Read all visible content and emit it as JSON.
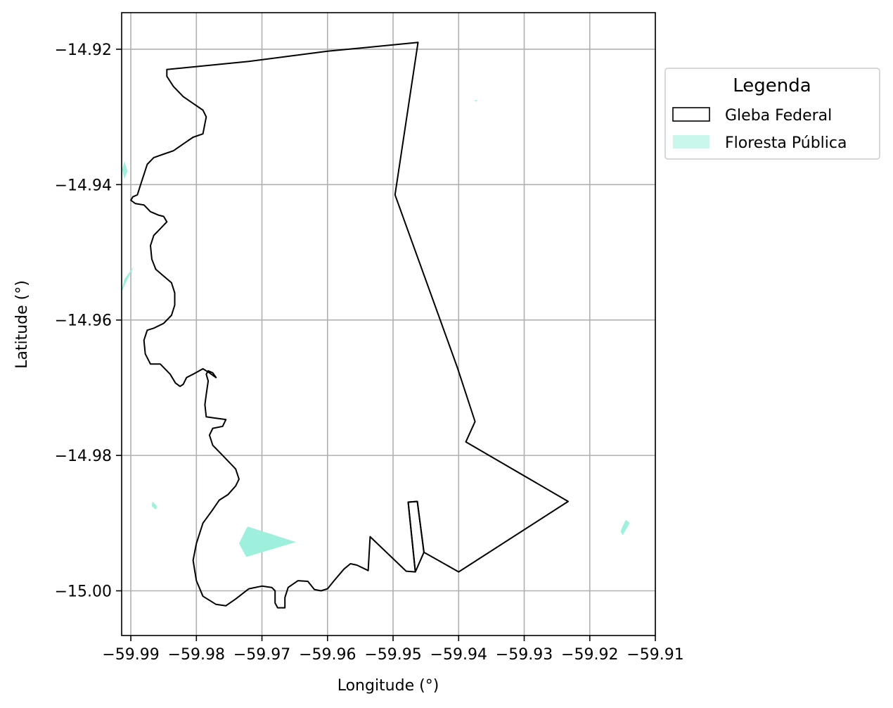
{
  "chart_data": {
    "type": "map",
    "xlabel": "Longitude (°)",
    "ylabel": "Latitude (°)",
    "xlim": [
      -59.9914,
      -59.91
    ],
    "ylim": [
      -15.0066,
      -14.9146
    ],
    "grid": true,
    "x_ticks": [
      {
        "value": -59.99,
        "label": "−59.99"
      },
      {
        "value": -59.98,
        "label": "−59.98"
      },
      {
        "value": -59.97,
        "label": "−59.97"
      },
      {
        "value": -59.96,
        "label": "−59.96"
      },
      {
        "value": -59.95,
        "label": "−59.95"
      },
      {
        "value": -59.94,
        "label": "−59.94"
      },
      {
        "value": -59.93,
        "label": "−59.93"
      },
      {
        "value": -59.92,
        "label": "−59.92"
      },
      {
        "value": -59.91,
        "label": "−59.91"
      }
    ],
    "y_ticks": [
      {
        "value": -14.92,
        "label": "−14.92"
      },
      {
        "value": -14.94,
        "label": "−14.94"
      },
      {
        "value": -14.96,
        "label": "−14.96"
      },
      {
        "value": -14.98,
        "label": "−14.98"
      },
      {
        "value": -15.0,
        "label": "−15.00"
      }
    ],
    "legend": {
      "title": "Legenda",
      "placement": "outside-right-top",
      "entries": [
        {
          "label": "Gleba Federal",
          "style": "outline",
          "color": "#000000"
        },
        {
          "label": "Floresta Pública",
          "style": "fill",
          "color": "#9ef0dc"
        }
      ]
    },
    "layers": [
      {
        "name": "Gleba Federal",
        "style": "outline",
        "edge_color": "#000000",
        "polygons": [
          [
            [
              -59.9845,
              -14.923
            ],
            [
              -59.972,
              -14.9218
            ],
            [
              -59.96,
              -14.9203
            ],
            [
              -59.9462,
              -14.919
            ],
            [
              -59.9497,
              -14.9415
            ],
            [
              -59.9402,
              -14.967
            ],
            [
              -59.9375,
              -14.975
            ],
            [
              -59.9389,
              -14.978
            ],
            [
              -59.9233,
              -14.9868
            ],
            [
              -59.94,
              -14.9972
            ],
            [
              -59.9453,
              -14.9943
            ],
            [
              -59.9463,
              -14.9868
            ],
            [
              -59.9477,
              -14.9869
            ],
            [
              -59.9466,
              -14.9972
            ],
            [
              -59.948,
              -14.9971
            ],
            [
              -59.9535,
              -14.992
            ],
            [
              -59.9538,
              -14.997
            ],
            [
              -59.9555,
              -14.9962
            ],
            [
              -59.9565,
              -14.996
            ],
            [
              -59.9575,
              -14.9968
            ],
            [
              -59.959,
              -14.9985
            ],
            [
              -59.96,
              -14.9997
            ],
            [
              -59.961,
              -15.0
            ],
            [
              -59.962,
              -14.9998
            ],
            [
              -59.963,
              -14.9986
            ],
            [
              -59.9645,
              -14.9985
            ],
            [
              -59.966,
              -14.9995
            ],
            [
              -59.9665,
              -15.001
            ],
            [
              -59.9665,
              -15.0025
            ],
            [
              -59.9676,
              -15.0025
            ],
            [
              -59.968,
              -15.0018
            ],
            [
              -59.968,
              -15.0
            ],
            [
              -59.9685,
              -14.9995
            ],
            [
              -59.97,
              -14.9993
            ],
            [
              -59.972,
              -14.9997
            ],
            [
              -59.974,
              -15.0012
            ],
            [
              -59.9755,
              -15.0022
            ],
            [
              -59.977,
              -15.002
            ],
            [
              -59.979,
              -15.0008
            ],
            [
              -59.98,
              -14.9985
            ],
            [
              -59.9805,
              -14.9955
            ],
            [
              -59.98,
              -14.993
            ],
            [
              -59.979,
              -14.99
            ],
            [
              -59.9775,
              -14.988
            ],
            [
              -59.9765,
              -14.9866
            ],
            [
              -59.9752,
              -14.9858
            ],
            [
              -59.974,
              -14.9845
            ],
            [
              -59.9735,
              -14.9835
            ],
            [
              -59.974,
              -14.982
            ],
            [
              -59.976,
              -14.98
            ],
            [
              -59.9775,
              -14.9785
            ],
            [
              -59.978,
              -14.977
            ],
            [
              -59.9775,
              -14.976
            ],
            [
              -59.976,
              -14.9757
            ],
            [
              -59.9755,
              -14.9747
            ],
            [
              -59.977,
              -14.9745
            ],
            [
              -59.9785,
              -14.9743
            ],
            [
              -59.9787,
              -14.9725
            ],
            [
              -59.9785,
              -14.971
            ],
            [
              -59.9782,
              -14.969
            ],
            [
              -59.9785,
              -14.968
            ],
            [
              -59.9782,
              -14.9675
            ],
            [
              -59.9775,
              -14.9678
            ],
            [
              -59.977,
              -14.9685
            ],
            [
              -59.978,
              -14.9678
            ],
            [
              -59.979,
              -14.9672
            ],
            [
              -59.9805,
              -14.968
            ],
            [
              -59.9815,
              -14.9685
            ],
            [
              -59.982,
              -14.9695
            ],
            [
              -59.9825,
              -14.9698
            ],
            [
              -59.9832,
              -14.9693
            ],
            [
              -59.984,
              -14.968
            ],
            [
              -59.9855,
              -14.9665
            ],
            [
              -59.987,
              -14.9665
            ],
            [
              -59.9878,
              -14.965
            ],
            [
              -59.988,
              -14.963
            ],
            [
              -59.9875,
              -14.9615
            ],
            [
              -59.9865,
              -14.9612
            ],
            [
              -59.985,
              -14.9605
            ],
            [
              -59.9838,
              -14.9593
            ],
            [
              -59.9833,
              -14.9578
            ],
            [
              -59.9833,
              -14.956
            ],
            [
              -59.9838,
              -14.9545
            ],
            [
              -59.985,
              -14.9535
            ],
            [
              -59.9862,
              -14.9525
            ],
            [
              -59.9868,
              -14.951
            ],
            [
              -59.987,
              -14.949
            ],
            [
              -59.9865,
              -14.9475
            ],
            [
              -59.9855,
              -14.9465
            ],
            [
              -59.9845,
              -14.9455
            ],
            [
              -59.985,
              -14.9447
            ],
            [
              -59.9858,
              -14.9445
            ],
            [
              -59.987,
              -14.944
            ],
            [
              -59.988,
              -14.943
            ],
            [
              -59.9893,
              -14.9428
            ],
            [
              -59.99,
              -14.9423
            ],
            [
              -59.9897,
              -14.9418
            ],
            [
              -59.989,
              -14.9415
            ],
            [
              -59.9885,
              -14.94
            ],
            [
              -59.988,
              -14.9385
            ],
            [
              -59.9875,
              -14.937
            ],
            [
              -59.9865,
              -14.936
            ],
            [
              -59.985,
              -14.9355
            ],
            [
              -59.9835,
              -14.935
            ],
            [
              -59.982,
              -14.934
            ],
            [
              -59.9805,
              -14.933
            ],
            [
              -59.979,
              -14.9325
            ],
            [
              -59.9785,
              -14.93
            ],
            [
              -59.979,
              -14.929
            ],
            [
              -59.9805,
              -14.928
            ],
            [
              -59.982,
              -14.927
            ],
            [
              -59.9835,
              -14.9255
            ],
            [
              -59.9845,
              -14.924
            ],
            [
              -59.9845,
              -14.923
            ]
          ],
          [
            [
              -59.9463,
              -14.9868
            ],
            [
              -59.9477,
              -14.9869
            ],
            [
              -59.9466,
              -14.9972
            ],
            [
              -59.9453,
              -14.9943
            ]
          ]
        ]
      },
      {
        "name": "Floresta Pública",
        "style": "fill",
        "fill_color": "#9ef0dc",
        "polygons": [
          [
            [
              -59.9722,
              -14.9905
            ],
            [
              -59.9648,
              -14.9928
            ],
            [
              -59.9724,
              -14.995
            ],
            [
              -59.9735,
              -14.993
            ]
          ],
          [
            [
              -59.991,
              -14.9365
            ],
            [
              -59.9905,
              -14.938
            ],
            [
              -59.991,
              -14.9392
            ],
            [
              -59.9913,
              -14.9378
            ]
          ],
          [
            [
              -59.9895,
              -14.952
            ],
            [
              -59.9905,
              -14.954
            ],
            [
              -59.9915,
              -14.956
            ],
            [
              -59.991,
              -14.954
            ]
          ],
          [
            [
              -59.9867,
              -14.9868
            ],
            [
              -59.986,
              -14.9875
            ],
            [
              -59.9862,
              -14.988
            ],
            [
              -59.9868,
              -14.9875
            ]
          ],
          [
            [
              -59.915,
              -14.9905
            ],
            [
              -59.9145,
              -14.9895
            ],
            [
              -59.9139,
              -14.99
            ],
            [
              -59.9145,
              -14.991
            ],
            [
              -59.915,
              -14.9918
            ],
            [
              -59.9153,
              -14.9912
            ]
          ],
          [
            [
              -59.9376,
              -14.9275
            ],
            [
              -59.9372,
              -14.9275
            ],
            [
              -59.9373,
              -14.9278
            ]
          ]
        ]
      }
    ]
  }
}
